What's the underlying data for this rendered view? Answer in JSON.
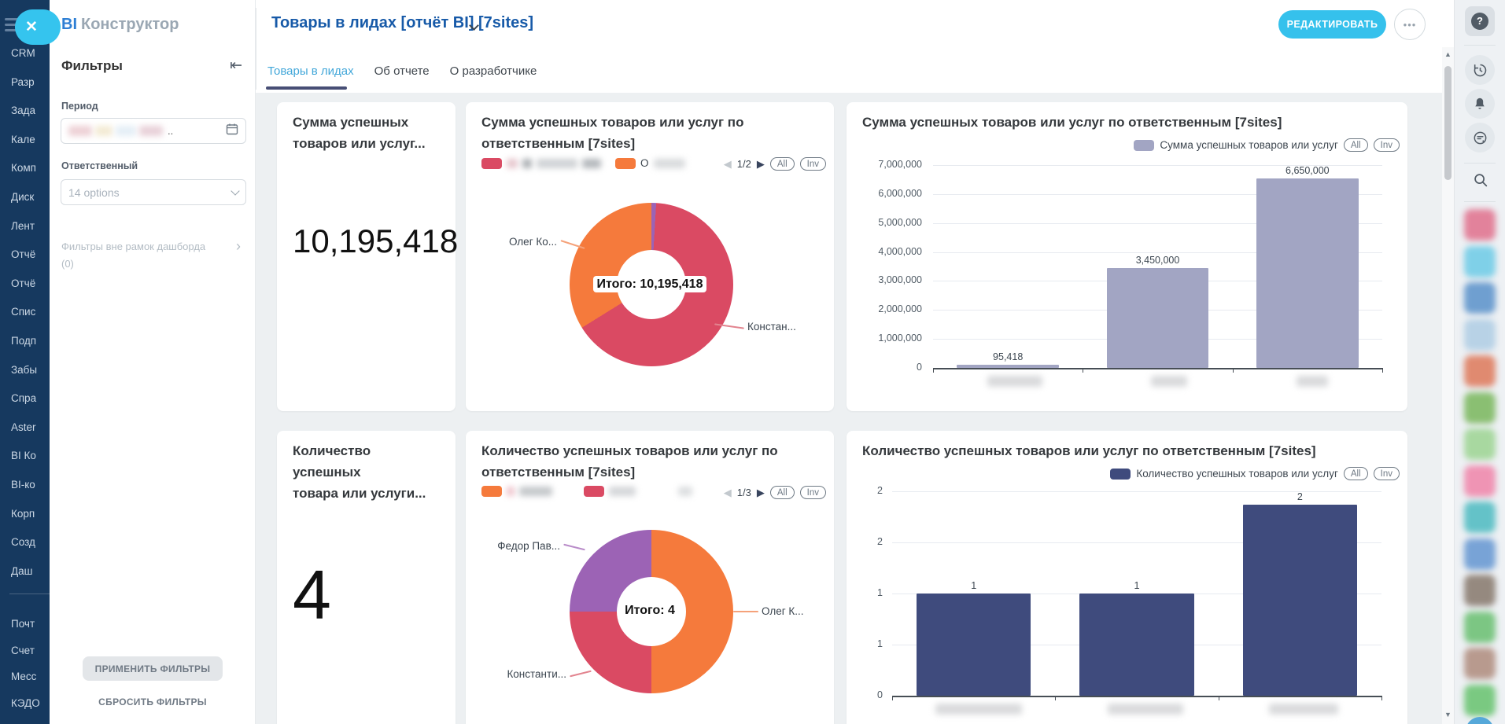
{
  "colors": {
    "cyan": "#35c1ec",
    "title_blue": "#175aa8",
    "tab_active": "#42a7d9",
    "tab_underline": "#474e75",
    "crimson": "#da4a63",
    "orange": "#f57a3c",
    "purple": "#9c63b5",
    "bar_sum": "#a2a5c3",
    "bar_count": "#3f4b7d",
    "sidebar_bg": "#16395f"
  },
  "left_nav": {
    "close_icon": "✕",
    "items": [
      "CRM",
      "Разр",
      "Зада",
      "Кале",
      "Комп",
      "Диск",
      "Лент",
      "Отчё",
      "Отчё",
      "Спис",
      "Подп",
      "Забы",
      "Спра",
      "Aster",
      "BI Ко",
      "BI-ко",
      "Корп",
      "Созд",
      "Даш"
    ],
    "bottom_items": [
      "Почт",
      "Счет",
      "Месс",
      "КЭДО"
    ]
  },
  "brand": {
    "bi": "BI",
    "name": "Конструктор"
  },
  "filter_panel": {
    "title": "Фильтры",
    "collapse_icon": "⇤",
    "period_label": "Период",
    "period_suffix": "..",
    "responsible_label": "Ответственный",
    "responsible_value": "14 options",
    "outside_label": "Фильтры вне рамок дашборда",
    "outside_count": "(0)",
    "outside_arrow": "›",
    "apply_button": "ПРИМЕНИТЬ ФИЛЬТРЫ",
    "reset_button": "СБРОСИТЬ ФИЛЬТРЫ"
  },
  "header": {
    "title": "Товары в лидах [отчёт BI] [7sites]",
    "edit_button": "РЕДАКТИРОВАТЬ",
    "more_button": "•••",
    "tabs": [
      "Товары в лидах",
      "Об отчете",
      "О разработчике"
    ]
  },
  "cards": {
    "sum_total": {
      "title_line1": "Сумма успешных",
      "title_line2": "товаров или услуг...",
      "value": "10,195,418"
    },
    "sum_donut": {
      "title": "Сумма успешных товаров или услуг по ответственным [7sites]",
      "legend_char": "О",
      "page": "1/2",
      "prev_icon": "◀",
      "next_icon": "▶",
      "all_button": "All",
      "inv_button": "Inv",
      "center_label": "Итого: 10,195,418",
      "label_left": "Олег Ко...",
      "label_right": "Констан..."
    },
    "sum_bar": {
      "title": "Сумма успешных товаров или услуг по ответственным [7sites]",
      "legend": "Сумма успешных товаров или услуг",
      "all_button": "All",
      "inv_button": "Inv",
      "y_ticks": [
        "7,000,000",
        "6,000,000",
        "5,000,000",
        "4,000,000",
        "3,000,000",
        "2,000,000",
        "1,000,000",
        "0"
      ],
      "bar_labels": [
        "95,418",
        "3,450,000",
        "6,650,000"
      ]
    },
    "count_total": {
      "title_line1": "Количество успешных",
      "title_line2": "товара или услуги...",
      "value": "4"
    },
    "count_donut": {
      "title": "Количество успешных товаров или услуг по ответственным [7sites]",
      "page": "1/3",
      "prev_icon": "◀",
      "next_icon": "▶",
      "all_button": "All",
      "inv_button": "Inv",
      "center_label": "Итого: 4",
      "label_top": "Федор Пав...",
      "label_right": "Олег К...",
      "label_bottom": "Константи..."
    },
    "count_bar": {
      "title": "Количество успешных товаров или услуг по ответственным [7sites]",
      "legend": "Количество успешных товаров или услуг",
      "all_button": "All",
      "inv_button": "Inv",
      "y_ticks": [
        "2",
        "2",
        "1",
        "1",
        "0"
      ],
      "bar_labels": [
        "1",
        "1",
        "2"
      ]
    }
  },
  "scrollbar": {
    "up_icon": "▲",
    "down_icon": "▼"
  },
  "right_rail": {
    "icons": [
      "help-icon",
      "history-icon",
      "notifications-icon",
      "chat-icon",
      "search-icon"
    ],
    "help_glyph": "?",
    "avatar_colors": [
      "#e2829b",
      "#7fd0e8",
      "#6f9fd0",
      "#b8d2e6",
      "#e08a70",
      "#8abf72",
      "#a8d8a0",
      "#ef94b4",
      "#64c2c8",
      "#78a3d6",
      "#95897f",
      "#7cc683",
      "#b89a8e",
      "#7ac981"
    ],
    "bottom_bubble_color": "#56a8d9"
  },
  "chart_data": [
    {
      "type": "pie",
      "title": "Сумма успешных товаров или услуг по ответственным [7sites]",
      "center_label": "Итого: 10,195,418",
      "total": 10195418,
      "legend_position": "top",
      "slices": [
        {
          "label": "",
          "value": 95418,
          "color": "#9c63b5"
        },
        {
          "label": "Констан...",
          "value": 6650000,
          "color": "#da4a63"
        },
        {
          "label": "Олег Ко...",
          "value": 3450000,
          "color": "#f57a3c"
        }
      ]
    },
    {
      "type": "bar",
      "title": "Сумма успешных товаров или услуг по ответственным [7sites]",
      "series": [
        {
          "name": "Сумма успешных товаров или услуг",
          "values": [
            95418,
            3450000,
            6650000
          ]
        }
      ],
      "categories": [
        "",
        "",
        ""
      ],
      "ylim": [
        0,
        7000000
      ],
      "grid": true,
      "legend_position": "top-right",
      "color": "#a2a5c3"
    },
    {
      "type": "pie",
      "title": "Количество успешных товаров или услуг по ответственным [7sites]",
      "center_label": "Итого: 4",
      "total": 4,
      "legend_position": "top",
      "slices": [
        {
          "label": "Олег К...",
          "value": 2,
          "color": "#f57a3c"
        },
        {
          "label": "Константи...",
          "value": 1,
          "color": "#da4a63"
        },
        {
          "label": "Федор Пав...",
          "value": 1,
          "color": "#9c63b5"
        }
      ]
    },
    {
      "type": "bar",
      "title": "Количество успешных товаров или услуг по ответственным [7sites]",
      "series": [
        {
          "name": "Количество успешных товаров или услуг",
          "values": [
            1,
            1,
            2
          ]
        }
      ],
      "categories": [
        "",
        "",
        ""
      ],
      "ylim": [
        0,
        2
      ],
      "grid": true,
      "legend_position": "top-right",
      "color": "#3f4b7d"
    }
  ]
}
